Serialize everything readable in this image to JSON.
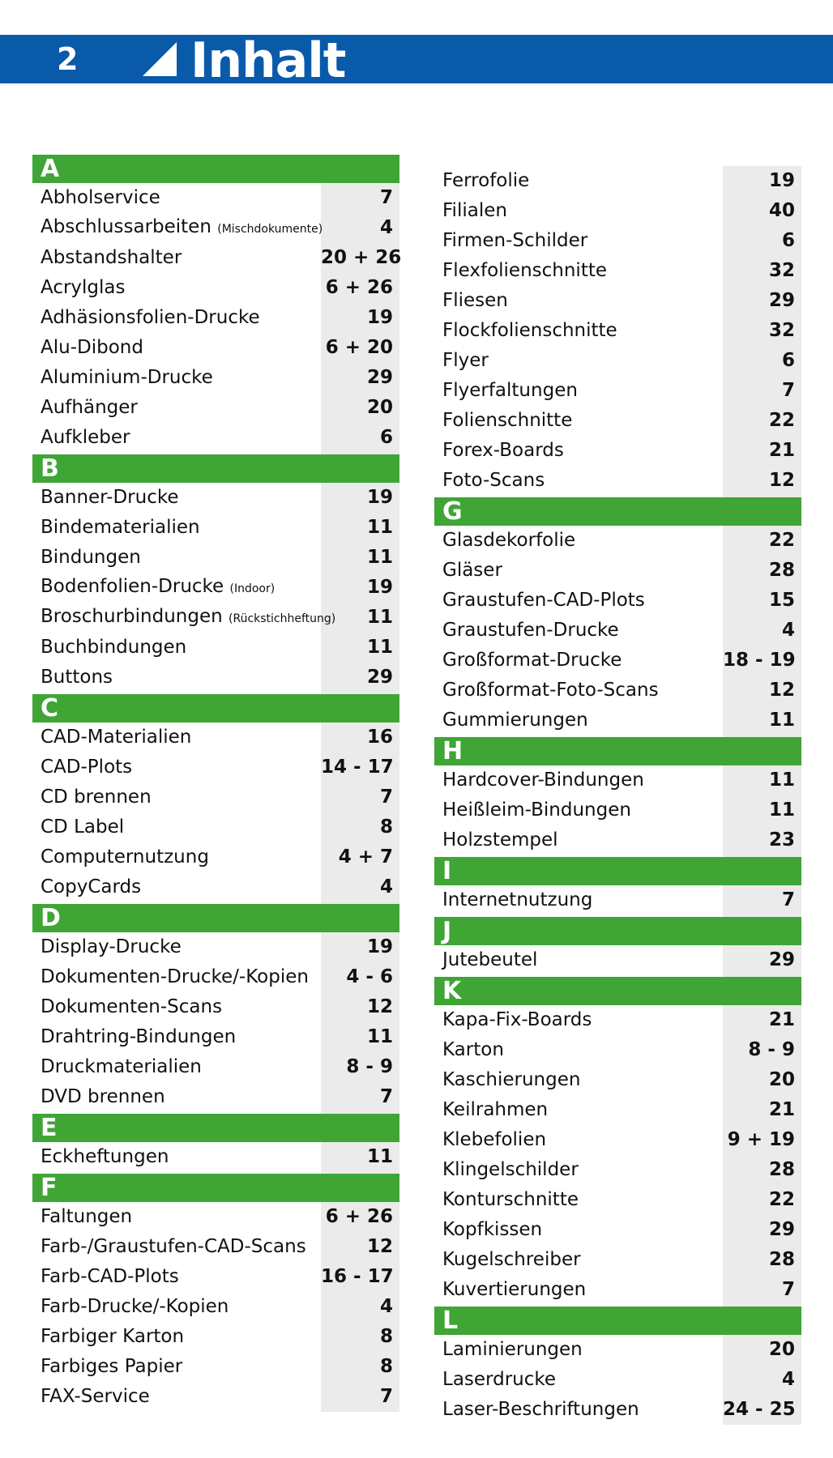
{
  "header": {
    "page_number": "2",
    "title": "Inhalt",
    "color": "#0a5aaa"
  },
  "accent_color": "#3fa535",
  "columns": [
    {
      "sections": [
        {
          "letter": "A",
          "entries": [
            {
              "label": "Abholservice",
              "pages": "7"
            },
            {
              "label": "Abschlussarbeiten",
              "note": "(Mischdokumente)",
              "pages": "4"
            },
            {
              "label": "Abstandshalter",
              "pages": "20 + 26"
            },
            {
              "label": "Acrylglas",
              "pages": "6 + 26"
            },
            {
              "label": "Adhäsionsfolien-Drucke",
              "pages": "19"
            },
            {
              "label": "Alu-Dibond",
              "pages": "6 + 20"
            },
            {
              "label": "Aluminium-Drucke",
              "pages": "29"
            },
            {
              "label": "Aufhänger",
              "pages": "20"
            },
            {
              "label": "Aufkleber",
              "pages": "6"
            }
          ]
        },
        {
          "letter": "B",
          "entries": [
            {
              "label": "Banner-Drucke",
              "pages": "19"
            },
            {
              "label": "Bindematerialien",
              "pages": "11"
            },
            {
              "label": "Bindungen",
              "pages": "11"
            },
            {
              "label": "Bodenfolien-Drucke",
              "note": "(Indoor)",
              "pages": "19"
            },
            {
              "label": "Broschurbindungen",
              "note": "(Rückstichheftung)",
              "pages": "11"
            },
            {
              "label": "Buchbindungen",
              "pages": "11"
            },
            {
              "label": "Buttons",
              "pages": "29"
            }
          ]
        },
        {
          "letter": "C",
          "entries": [
            {
              "label": "CAD-Materialien",
              "pages": "16"
            },
            {
              "label": "CAD-Plots",
              "pages": "14 - 17"
            },
            {
              "label": "CD brennen",
              "pages": "7"
            },
            {
              "label": "CD Label",
              "pages": "8"
            },
            {
              "label": "Computernutzung",
              "pages": "4 + 7"
            },
            {
              "label": "CopyCards",
              "pages": "4"
            }
          ]
        },
        {
          "letter": "D",
          "entries": [
            {
              "label": "Display-Drucke",
              "pages": "19"
            },
            {
              "label": "Dokumenten-Drucke/-Kopien",
              "pages": "4 - 6"
            },
            {
              "label": "Dokumenten-Scans",
              "pages": "12"
            },
            {
              "label": "Drahtring-Bindungen",
              "pages": "11"
            },
            {
              "label": "Druckmaterialien",
              "pages": "8 - 9"
            },
            {
              "label": "DVD brennen",
              "pages": "7"
            }
          ]
        },
        {
          "letter": "E",
          "entries": [
            {
              "label": "Eckheftungen",
              "pages": "11"
            }
          ]
        },
        {
          "letter": "F",
          "entries": [
            {
              "label": "Faltungen",
              "pages": "6 + 26"
            },
            {
              "label": "Farb-/Graustufen-CAD-Scans",
              "pages": "12"
            },
            {
              "label": "Farb-CAD-Plots",
              "pages": "16 - 17"
            },
            {
              "label": "Farb-Drucke/-Kopien",
              "pages": "4"
            },
            {
              "label": "Farbiger Karton",
              "pages": "8"
            },
            {
              "label": "Farbiges Papier",
              "pages": "8"
            },
            {
              "label": "FAX-Service",
              "pages": "7"
            }
          ]
        }
      ]
    },
    {
      "sections": [
        {
          "letter": "",
          "entries": [
            {
              "label": "Ferrofolie",
              "pages": "19"
            },
            {
              "label": "Filialen",
              "pages": "40"
            },
            {
              "label": "Firmen-Schilder",
              "pages": "6"
            },
            {
              "label": "Flexfolienschnitte",
              "pages": "32"
            },
            {
              "label": "Fliesen",
              "pages": "29"
            },
            {
              "label": "Flockfolienschnitte",
              "pages": "32"
            },
            {
              "label": "Flyer",
              "pages": "6"
            },
            {
              "label": "Flyerfaltungen",
              "pages": "7"
            },
            {
              "label": "Folienschnitte",
              "pages": "22"
            },
            {
              "label": "Forex-Boards",
              "pages": "21"
            },
            {
              "label": "Foto-Scans",
              "pages": "12"
            }
          ]
        },
        {
          "letter": "G",
          "entries": [
            {
              "label": "Glasdekorfolie",
              "pages": "22"
            },
            {
              "label": "Gläser",
              "pages": "28"
            },
            {
              "label": "Graustufen-CAD-Plots",
              "pages": "15"
            },
            {
              "label": "Graustufen-Drucke",
              "pages": "4"
            },
            {
              "label": "Großformat-Drucke",
              "pages": "18 - 19"
            },
            {
              "label": "Großformat-Foto-Scans",
              "pages": "12"
            },
            {
              "label": "Gummierungen",
              "pages": "11"
            }
          ]
        },
        {
          "letter": "H",
          "entries": [
            {
              "label": "Hardcover-Bindungen",
              "pages": "11"
            },
            {
              "label": "Heißleim-Bindungen",
              "pages": "11"
            },
            {
              "label": "Holzstempel",
              "pages": "23"
            }
          ]
        },
        {
          "letter": "I",
          "entries": [
            {
              "label": "Internetnutzung",
              "pages": "7"
            }
          ]
        },
        {
          "letter": "J",
          "entries": [
            {
              "label": "Jutebeutel",
              "pages": "29"
            }
          ]
        },
        {
          "letter": "K",
          "entries": [
            {
              "label": "Kapa-Fix-Boards",
              "pages": "21"
            },
            {
              "label": "Karton",
              "pages": "8 - 9"
            },
            {
              "label": "Kaschierungen",
              "pages": "20"
            },
            {
              "label": "Keilrahmen",
              "pages": "21"
            },
            {
              "label": "Klebefolien",
              "pages": "9 + 19"
            },
            {
              "label": "Klingelschilder",
              "pages": "28"
            },
            {
              "label": "Konturschnitte",
              "pages": "22"
            },
            {
              "label": "Kopfkissen",
              "pages": "29"
            },
            {
              "label": "Kugelschreiber",
              "pages": "28"
            },
            {
              "label": "Kuvertierungen",
              "pages": "7"
            }
          ]
        },
        {
          "letter": "L",
          "entries": [
            {
              "label": "Laminierungen",
              "pages": "20"
            },
            {
              "label": "Laserdrucke",
              "pages": "4"
            },
            {
              "label": "Laser-Beschriftungen",
              "pages": "24 - 25"
            }
          ]
        }
      ]
    }
  ]
}
